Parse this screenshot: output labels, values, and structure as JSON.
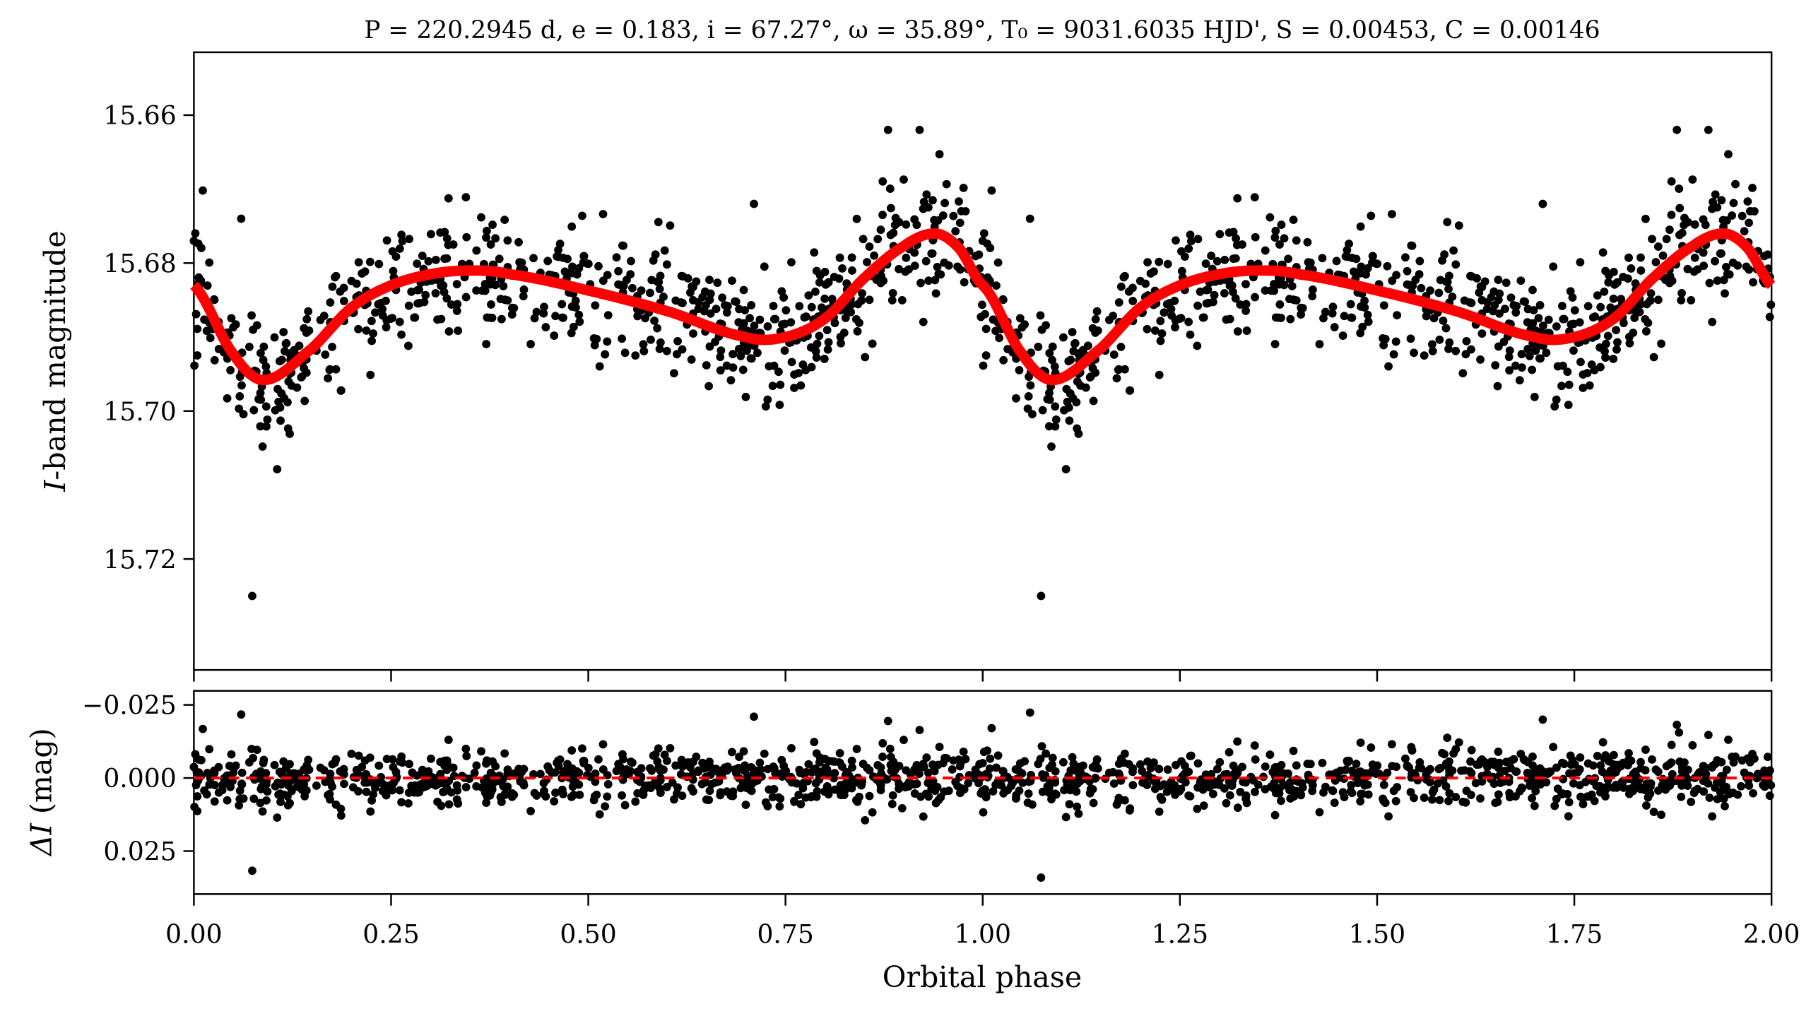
{
  "chart_data": [
    {
      "type": "scatter",
      "title": "P = 220.2945 d, e = 0.183, i = 67.27°, ω = 35.89°, T₀ = 9031.6035 HJD', S = 0.00453, C = 0.00146",
      "xlabel": "Orbital phase",
      "ylabel_var": "I",
      "ylabel_rest": "-band magnitude",
      "xlim": [
        0,
        2
      ],
      "ylim": [
        15.735,
        15.6515
      ],
      "y_inverted": true,
      "yticks": [
        "15.66",
        "15.68",
        "15.70",
        "15.72"
      ],
      "ytick_values": [
        15.66,
        15.68,
        15.7,
        15.72
      ],
      "xtick_values": [
        0,
        0.25,
        0.5,
        0.75,
        1.0,
        1.25,
        1.5,
        1.75,
        2.0
      ],
      "model_curve": {
        "color": "#ff0000",
        "phase": [
          0,
          0.05,
          0.09,
          0.15,
          0.2,
          0.25,
          0.3,
          0.35,
          0.4,
          0.5,
          0.6,
          0.7,
          0.75,
          0.8,
          0.85,
          0.9,
          0.94,
          0.97,
          1.0
        ],
        "mag": [
          15.683,
          15.6923,
          15.6958,
          15.6915,
          15.686,
          15.683,
          15.6815,
          15.681,
          15.6815,
          15.6837,
          15.6865,
          15.69,
          15.69,
          15.6875,
          15.682,
          15.6777,
          15.676,
          15.678,
          15.683
        ]
      },
      "observations": {
        "color": "#000000",
        "points_per_cycle": 700,
        "scatter_sigma_mag": 0.0045,
        "repeated_over_cycles": 2,
        "outliers": [
          [
            0.074,
            15.725
          ],
          [
            0.0,
            15.677
          ],
          [
            0.06,
            15.674
          ],
          [
            0.71,
            15.672
          ],
          [
            0.88,
            15.662
          ],
          [
            0.92,
            15.662
          ]
        ]
      }
    },
    {
      "type": "scatter",
      "xlabel": "Orbital phase",
      "ylabel_var": "ΔI",
      "ylabel_rest": " (mag)",
      "xlim": [
        0,
        2
      ],
      "ylim": [
        0.0397,
        -0.0298
      ],
      "y_inverted": true,
      "yticks": [
        "−0.025",
        "0.000",
        "0.025"
      ],
      "ytick_values": [
        -0.025,
        0,
        0.025
      ],
      "xticks": [
        "0.00",
        "0.25",
        "0.50",
        "0.75",
        "1.00",
        "1.25",
        "1.50",
        "1.75",
        "2.00"
      ],
      "xtick_values": [
        0,
        0.25,
        0.5,
        0.75,
        1.0,
        1.25,
        1.5,
        1.75,
        2.0
      ],
      "zero_line": {
        "value": 0,
        "color": "#ff0000",
        "style": "dashed"
      },
      "residuals": {
        "color": "#000000",
        "scatter_sigma_mag": 0.005,
        "outliers": [
          [
            0.074,
            0.03
          ],
          [
            0.06,
            -0.02
          ]
        ]
      }
    }
  ]
}
